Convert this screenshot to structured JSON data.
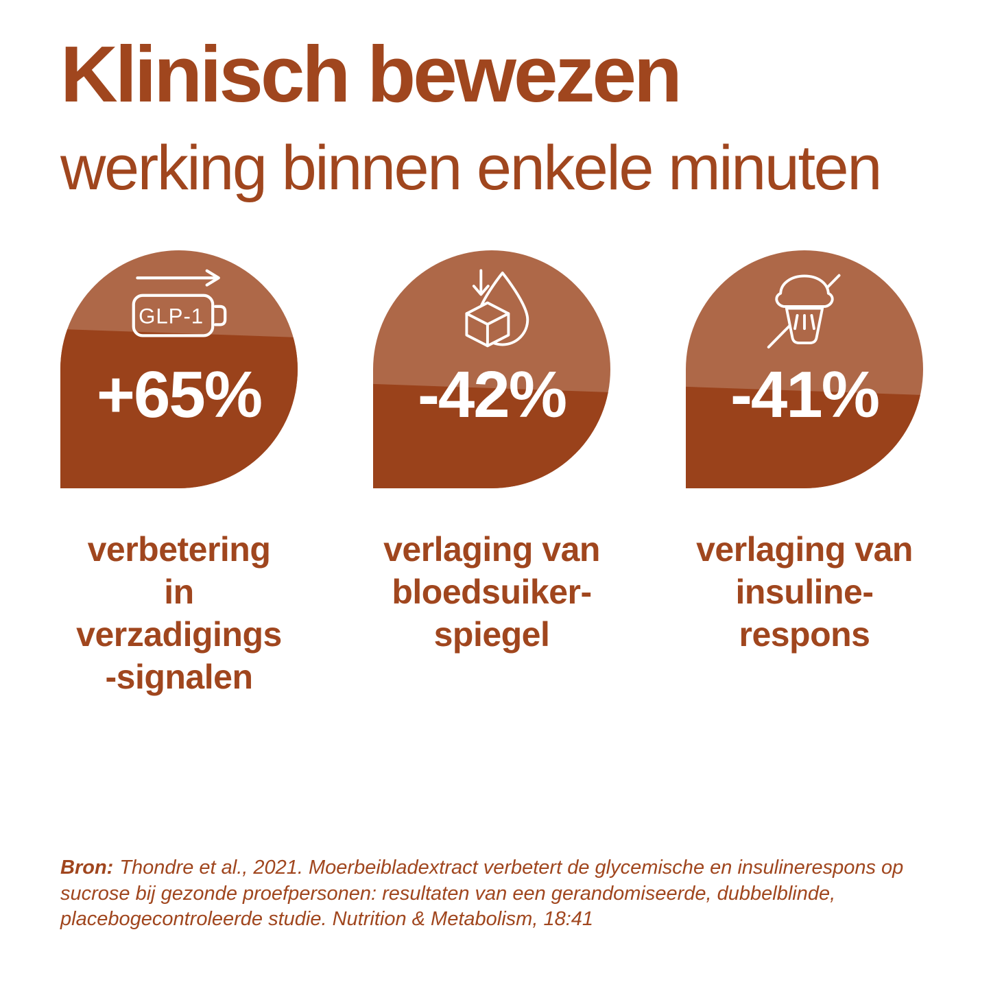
{
  "page": {
    "background": "#FFFFFF"
  },
  "colors": {
    "accent_text": "#A0461E",
    "fill_dark": "#9A421B",
    "fill_light": "#AE6848",
    "percent_text": "#FFFFFF"
  },
  "header": {
    "title": "Klinisch bewezen",
    "subtitle": "werking binnen enkele minuten"
  },
  "stats": [
    {
      "icon": "glp1-battery-icon",
      "icon_label": "GLP-1",
      "value": "+65%",
      "fill_percent": 65,
      "caption": "verbetering\nin\nverzadigings\n-signalen"
    },
    {
      "icon": "sugar-cube-droplet-icon",
      "value": "-42%",
      "fill_percent": 42,
      "caption": "verlaging van\nbloedsuiker-\nspiegel"
    },
    {
      "icon": "crossed-cupcake-icon",
      "value": "-41%",
      "fill_percent": 41,
      "caption": "verlaging van\ninsuline-\nrespons"
    }
  ],
  "source": {
    "label": "Bron:",
    "text": "Thondre et al., 2021. Moerbeibladextract verbetert de glycemische en insulinerespons op sucrose bij gezonde proefpersonen: resultaten van een gerandomiseerde, dubbelblinde, placebogecontroleerde studie. Nutrition & Metabolism, 18:41"
  },
  "chart_data": {
    "type": "bar",
    "title": "Klinisch bewezen",
    "subtitle": "werking binnen enkele minuten",
    "categories": [
      "verbetering in verzadigings-signalen",
      "verlaging van bloedsuikerspiegel",
      "verlaging van insulinerespons"
    ],
    "values": [
      65,
      -42,
      -41
    ],
    "labels": [
      "+65%",
      "-42%",
      "-41%"
    ],
    "unit": "%",
    "legend": "none",
    "source": "Thondre et al., 2021. Nutrition & Metabolism, 18:41"
  }
}
